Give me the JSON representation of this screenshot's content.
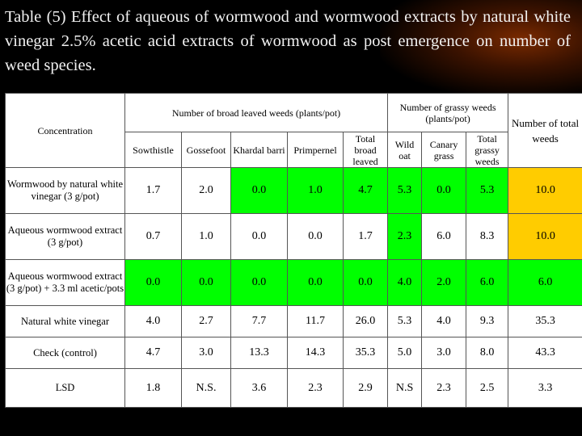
{
  "title": "Table (5) Effect of aqueous of wormwood  and wormwood  extracts by natural white vinegar 2.5% acetic acid extracts of wormwood as post emergence on number of weed species.",
  "colors": {
    "green": "#00ff00",
    "orange": "#ffcc00",
    "background": "#000000"
  },
  "table": {
    "concentration_label": "Concentration",
    "broad_group_label": "Number of broad leaved weeds (plants/pot)",
    "grassy_group_label": "Number of grassy weeds (plants/pot)",
    "total_label": "Number of total weeds",
    "columns": [
      "Sowthistle",
      "Gossefoot",
      "Khardal barri",
      "Primpernel",
      "Total broad leaved",
      "Wild oat",
      "Canary grass",
      "Total grassy weeds"
    ],
    "rows": [
      {
        "label": "Wormwood by natural white vinegar (3 g/pot)",
        "values": [
          "1.7",
          "2.0",
          "0.0",
          "1.0",
          "4.7",
          "5.3",
          "0.0",
          "5.3",
          "10.0"
        ]
      },
      {
        "label": "Aqueous wormwood extract (3 g/pot)",
        "values": [
          "0.7",
          "1.0",
          "0.0",
          "0.0",
          "1.7",
          "2.3",
          "6.0",
          "8.3",
          "10.0"
        ]
      },
      {
        "label": "Aqueous wormwood extract (3 g/pot) + 3.3 ml acetic/pots",
        "values": [
          "0.0",
          "0.0",
          "0.0",
          "0.0",
          "0.0",
          "4.0",
          "2.0",
          "6.0",
          "6.0"
        ]
      },
      {
        "label": "Natural white vinegar",
        "values": [
          "4.0",
          "2.7",
          "7.7",
          "11.7",
          "26.0",
          "5.3",
          "4.0",
          "9.3",
          "35.3"
        ]
      },
      {
        "label": "Check (control)",
        "values": [
          "4.7",
          "3.0",
          "13.3",
          "14.3",
          "35.3",
          "5.0",
          "3.0",
          "8.0",
          "43.3"
        ]
      },
      {
        "label": "LSD",
        "values": [
          "1.8",
          "N.S.",
          "3.6",
          "2.3",
          "2.9",
          "N.S",
          "2.3",
          "2.5",
          "3.3"
        ]
      }
    ]
  }
}
